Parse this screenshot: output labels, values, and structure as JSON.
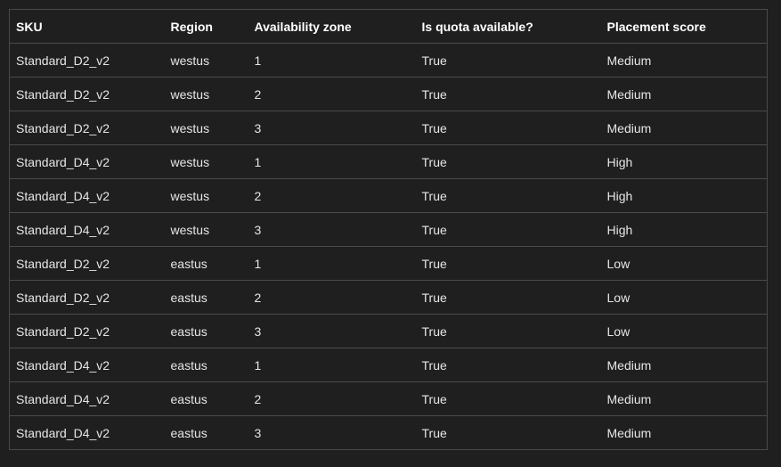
{
  "table": {
    "headers": [
      "SKU",
      "Region",
      "Availability zone",
      "Is quota available?",
      "Placement score"
    ],
    "rows": [
      [
        "Standard_D2_v2",
        "westus",
        "1",
        "True",
        "Medium"
      ],
      [
        "Standard_D2_v2",
        "westus",
        "2",
        "True",
        "Medium"
      ],
      [
        "Standard_D2_v2",
        "westus",
        "3",
        "True",
        "Medium"
      ],
      [
        "Standard_D4_v2",
        "westus",
        "1",
        "True",
        "High"
      ],
      [
        "Standard_D4_v2",
        "westus",
        "2",
        "True",
        "High"
      ],
      [
        "Standard_D4_v2",
        "westus",
        "3",
        "True",
        "High"
      ],
      [
        "Standard_D2_v2",
        "eastus",
        "1",
        "True",
        "Low"
      ],
      [
        "Standard_D2_v2",
        "eastus",
        "2",
        "True",
        "Low"
      ],
      [
        "Standard_D2_v2",
        "eastus",
        "3",
        "True",
        "Low"
      ],
      [
        "Standard_D4_v2",
        "eastus",
        "1",
        "True",
        "Medium"
      ],
      [
        "Standard_D4_v2",
        "eastus",
        "2",
        "True",
        "Medium"
      ],
      [
        "Standard_D4_v2",
        "eastus",
        "3",
        "True",
        "Medium"
      ]
    ]
  }
}
